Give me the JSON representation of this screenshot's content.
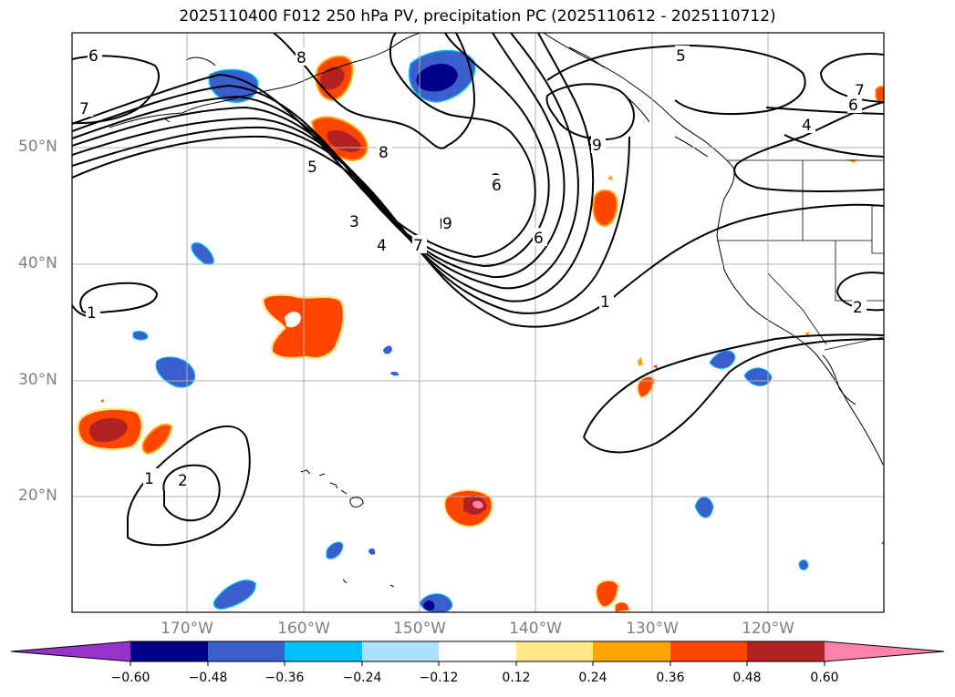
{
  "title": "2025110400 F012 250 hPa PV, precipitation PC (2025110612 - 2025110712)",
  "lat_labels": [
    "50°N",
    "40°N",
    "30°N",
    "20°N"
  ],
  "lon_labels": [
    "170°W",
    "160°W",
    "150°W",
    "140°W",
    "130°W",
    "120°W"
  ],
  "colorbar": {
    "ticks": [
      "−0.60",
      "−0.48",
      "−0.36",
      "−0.24",
      "−0.12",
      "0.12",
      "0.24",
      "0.36",
      "0.48",
      "0.60"
    ],
    "colors": [
      "#9932CC",
      "#00008B",
      "#3A5FCD",
      "#00BFFF",
      "#ADDFFF",
      "#FFFFFF",
      "#FFE98A",
      "#FFA500",
      "#FF4500",
      "#B22222",
      "#FF82AB"
    ]
  },
  "contour_labels": [
    "6",
    "7",
    "8",
    "5",
    "3",
    "4",
    "7",
    "8",
    "9",
    "6",
    "1",
    "5",
    "7",
    "6",
    "4",
    "1",
    "2",
    "1",
    "2",
    "6",
    "9"
  ]
}
